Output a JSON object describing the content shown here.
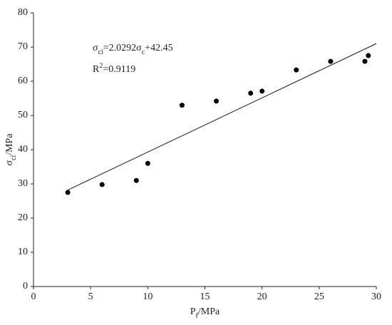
{
  "chart_data": {
    "type": "scatter",
    "x_label": [
      {
        "text": "P"
      },
      {
        "text": "f",
        "sub": true
      },
      {
        "text": "/MPa"
      }
    ],
    "y_label": [
      {
        "text": "σ"
      },
      {
        "text": "ci",
        "sub": true
      },
      {
        "text": "/MPa"
      }
    ],
    "annotations": [
      [
        {
          "text": "σ"
        },
        {
          "text": "ci",
          "sub": true
        },
        {
          "text": "=2.0292σ"
        },
        {
          "text": "c",
          "sub": true
        },
        {
          "text": "+42.45"
        }
      ],
      [
        {
          "text": "R"
        },
        {
          "text": "2",
          "sup": true
        },
        {
          "text": "=0.9119"
        }
      ]
    ],
    "series": [
      {
        "type": "scatter",
        "color": "#000000",
        "x": [
          3,
          6,
          9,
          10,
          13,
          16,
          19,
          20,
          23,
          26,
          29,
          29.3
        ],
        "values": [
          27.5,
          29.8,
          31,
          36,
          53,
          54.2,
          56.5,
          57.1,
          63.3,
          65.8,
          65.8,
          67.5
        ]
      },
      {
        "type": "line",
        "color": "#333333",
        "x": [
          3,
          30
        ],
        "values": [
          28.2,
          71
        ]
      }
    ],
    "xlim": [
      0,
      30
    ],
    "xticks": [
      0,
      5,
      10,
      15,
      20,
      25,
      30
    ],
    "ylim": [
      0,
      80
    ],
    "yticks": [
      0,
      10,
      20,
      30,
      40,
      50,
      60,
      70,
      80
    ]
  }
}
